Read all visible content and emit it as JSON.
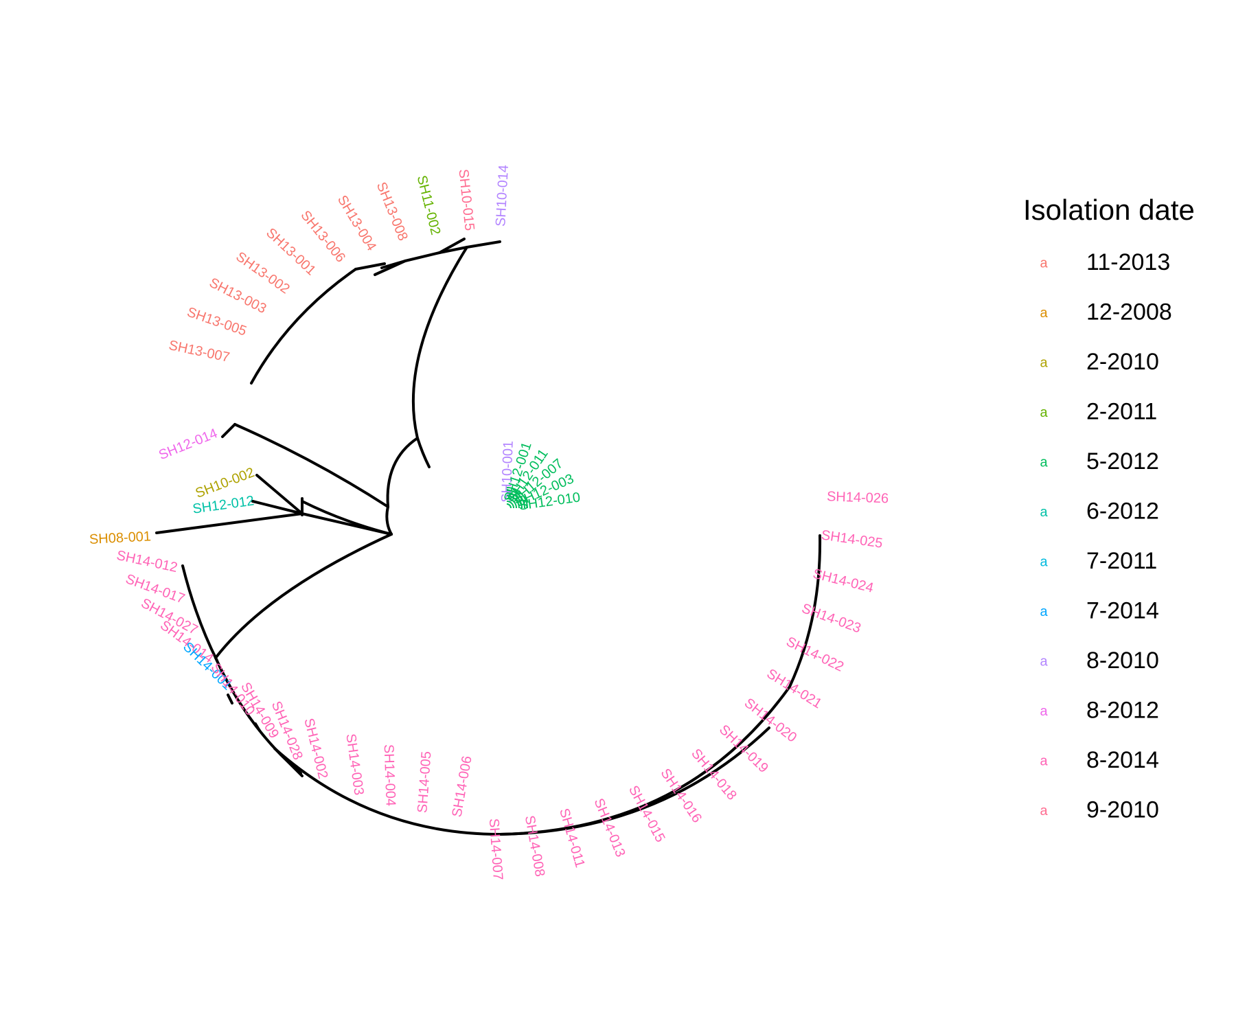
{
  "legend": {
    "title": "Isolation date",
    "key_glyph": "a",
    "entries": [
      {
        "label": "11-2013",
        "color": "#F8766D"
      },
      {
        "label": "12-2008",
        "color": "#DB8E00"
      },
      {
        "label": "2-2010",
        "color": "#AEA200"
      },
      {
        "label": "2-2011",
        "color": "#64B200"
      },
      {
        "label": "5-2012",
        "color": "#00BD5C"
      },
      {
        "label": "6-2012",
        "color": "#00C1A7"
      },
      {
        "label": "7-2011",
        "color": "#00BADE"
      },
      {
        "label": "7-2014",
        "color": "#00A6FF"
      },
      {
        "label": "8-2010",
        "color": "#B385FF"
      },
      {
        "label": "8-2012",
        "color": "#EF67EB"
      },
      {
        "label": "8-2014",
        "color": "#FF63B6"
      },
      {
        "label": "9-2010",
        "color": "#FF6C91"
      }
    ]
  },
  "tips": [
    {
      "label": "SH10-014",
      "date": "8-2010"
    },
    {
      "label": "SH10-015",
      "date": "9-2010"
    },
    {
      "label": "SH11-002",
      "date": "2-2011"
    },
    {
      "label": "SH13-008",
      "date": "11-2013"
    },
    {
      "label": "SH13-004",
      "date": "11-2013"
    },
    {
      "label": "SH13-006",
      "date": "11-2013"
    },
    {
      "label": "SH13-001",
      "date": "11-2013"
    },
    {
      "label": "SH13-002",
      "date": "11-2013"
    },
    {
      "label": "SH13-003",
      "date": "11-2013"
    },
    {
      "label": "SH13-005",
      "date": "11-2013"
    },
    {
      "label": "SH13-007",
      "date": "11-2013"
    },
    {
      "label": "SH12-014",
      "date": "8-2012"
    },
    {
      "label": "SH10-002",
      "date": "2-2010"
    },
    {
      "label": "SH12-012",
      "date": "6-2012"
    },
    {
      "label": "SH08-001",
      "date": "12-2008"
    },
    {
      "label": "SH14-012",
      "date": "8-2014"
    },
    {
      "label": "SH14-017",
      "date": "8-2014"
    },
    {
      "label": "SH14-027",
      "date": "8-2014"
    },
    {
      "label": "SH14-014",
      "date": "8-2014"
    },
    {
      "label": "SH14-001",
      "date": "7-2014"
    },
    {
      "label": "SH14-010",
      "date": "8-2014"
    },
    {
      "label": "SH14-009",
      "date": "8-2014"
    },
    {
      "label": "SH14-028",
      "date": "8-2014"
    },
    {
      "label": "SH14-002",
      "date": "8-2014"
    },
    {
      "label": "SH14-003",
      "date": "8-2014"
    },
    {
      "label": "SH14-004",
      "date": "8-2014"
    },
    {
      "label": "SH14-005",
      "date": "8-2014"
    },
    {
      "label": "SH14-006",
      "date": "8-2014"
    },
    {
      "label": "SH14-007",
      "date": "8-2014"
    },
    {
      "label": "SH14-008",
      "date": "8-2014"
    },
    {
      "label": "SH14-011",
      "date": "8-2014"
    },
    {
      "label": "SH14-013",
      "date": "8-2014"
    },
    {
      "label": "SH14-015",
      "date": "8-2014"
    },
    {
      "label": "SH14-016",
      "date": "8-2014"
    },
    {
      "label": "SH14-018",
      "date": "8-2014"
    },
    {
      "label": "SH14-019",
      "date": "8-2014"
    },
    {
      "label": "SH14-020",
      "date": "8-2014"
    },
    {
      "label": "SH14-021",
      "date": "8-2014"
    },
    {
      "label": "SH14-022",
      "date": "8-2014"
    },
    {
      "label": "SH14-023",
      "date": "8-2014"
    },
    {
      "label": "SH14-024",
      "date": "8-2014"
    },
    {
      "label": "SH14-025",
      "date": "8-2014"
    },
    {
      "label": "SH14-026",
      "date": "8-2014"
    }
  ],
  "cluster_tips": [
    {
      "label": "SH10-001",
      "date": "8-2010"
    },
    {
      "label": "SH12-001",
      "date": "5-2012"
    },
    {
      "label": "SH12-011",
      "date": "5-2012"
    },
    {
      "label": "SH12-007",
      "date": "5-2012"
    },
    {
      "label": "SH12-003",
      "date": "5-2012"
    },
    {
      "label": "SH12-010",
      "date": "5-2012"
    }
  ]
}
